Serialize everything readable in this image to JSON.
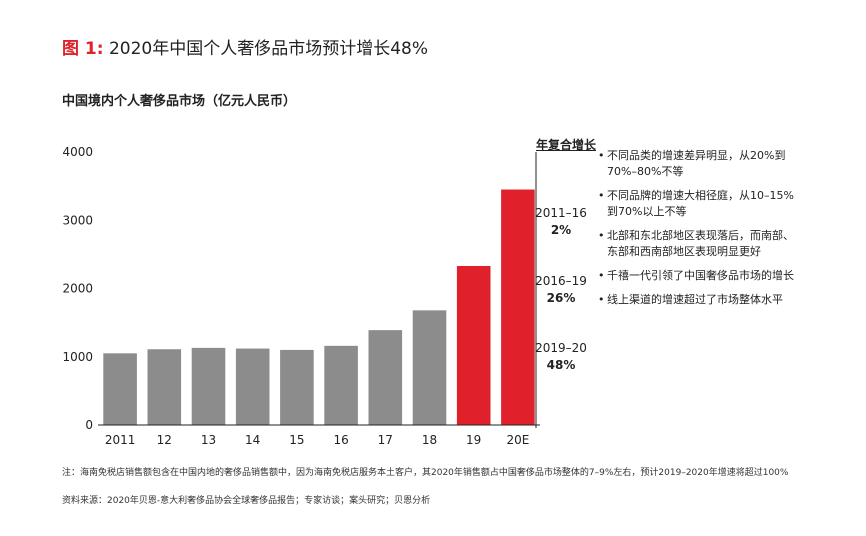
{
  "figure": {
    "label": "图 1:",
    "title": "2020年中国个人奢侈品市场预计增长48%"
  },
  "chart_data": {
    "type": "bar",
    "title": "中国境内个人奢侈品市场（亿元人民币）",
    "categories": [
      "2011",
      "12",
      "13",
      "14",
      "15",
      "16",
      "17",
      "18",
      "19",
      "20E"
    ],
    "values": [
      1050,
      1110,
      1130,
      1120,
      1100,
      1160,
      1390,
      1680,
      2330,
      3450
    ],
    "bar_colors": [
      "#8c8c8c",
      "#8c8c8c",
      "#8c8c8c",
      "#8c8c8c",
      "#8c8c8c",
      "#8c8c8c",
      "#8c8c8c",
      "#8c8c8c",
      "#e0202a",
      "#e0202a"
    ],
    "yticks": [
      0,
      1000,
      2000,
      3000,
      4000
    ],
    "ylim": [
      0,
      4000
    ],
    "grid": false,
    "cagr": {
      "header": "年复合增长",
      "items": [
        {
          "period": "2011–16",
          "value": "2%"
        },
        {
          "period": "2016–19",
          "value": "26%"
        },
        {
          "period": "2019–20",
          "value": "48%"
        }
      ]
    }
  },
  "notes": [
    "不同品类的增速差异明显，从20%到70%–80%不等",
    "不同品牌的增速大相径庭，从10–15%到70%以上不等",
    "北部和东北部地区表现落后，而南部、东部和西南部地区表现明显更好",
    "千禧一代引领了中国奢侈品市场的增长",
    "线上渠道的增速超过了市场整体水平"
  ],
  "bullet": "•",
  "footnote": "注：海南免税店销售额包含在中国内地的奢侈品销售额中，因为海南免税店服务本土客户，其2020年销售额占中国奢侈品市场整体的7–9%左右，预计2019–2020年增速将超过100%",
  "source": "资料来源：2020年贝恩-意大利奢侈品协会全球奢侈品报告；专家访谈；案头研究；贝恩分析"
}
